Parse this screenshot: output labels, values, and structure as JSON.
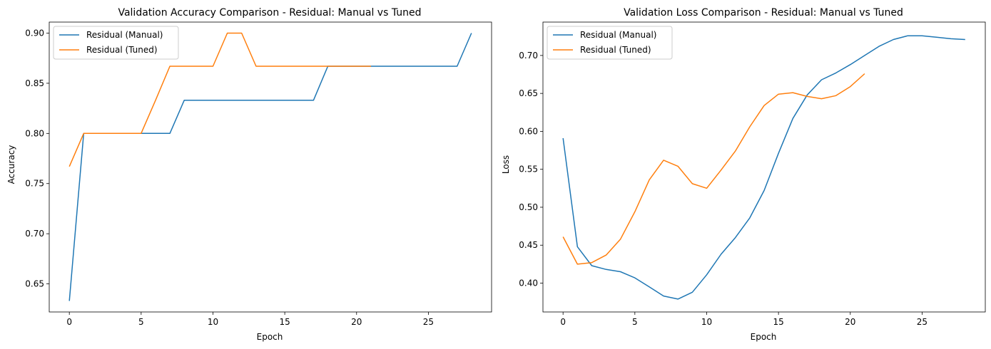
{
  "chart_data": [
    {
      "type": "line",
      "title": "Validation Accuracy Comparison - Residual: Manual vs Tuned",
      "xlabel": "Epoch",
      "ylabel": "Accuracy",
      "xlim": [
        -1.4,
        29.4
      ],
      "ylim": [
        0.622,
        0.911
      ],
      "xticks": [
        0,
        5,
        10,
        15,
        20,
        25
      ],
      "xtick_labels": [
        "0",
        "5",
        "10",
        "15",
        "20",
        "25"
      ],
      "yticks": [
        0.65,
        0.7,
        0.75,
        0.8,
        0.85,
        0.9
      ],
      "ytick_labels": [
        "0.65",
        "0.70",
        "0.75",
        "0.80",
        "0.85",
        "0.90"
      ],
      "grid": false,
      "legend_position": "top-left",
      "series": [
        {
          "name": "Residual (Manual)",
          "color": "#1f77b4",
          "x": [
            0,
            1,
            2,
            3,
            4,
            5,
            6,
            7,
            8,
            9,
            10,
            11,
            12,
            13,
            14,
            15,
            16,
            17,
            18,
            19,
            20,
            21,
            22,
            23,
            24,
            25,
            26,
            27,
            28
          ],
          "values": [
            0.633,
            0.8,
            0.8,
            0.8,
            0.8,
            0.8,
            0.8,
            0.8,
            0.833,
            0.833,
            0.833,
            0.833,
            0.833,
            0.833,
            0.833,
            0.833,
            0.833,
            0.833,
            0.867,
            0.867,
            0.867,
            0.867,
            0.867,
            0.867,
            0.867,
            0.867,
            0.867,
            0.867,
            0.9
          ]
        },
        {
          "name": "Residual (Tuned)",
          "color": "#ff7f0e",
          "x": [
            0,
            1,
            2,
            3,
            4,
            5,
            6,
            7,
            8,
            9,
            10,
            11,
            12,
            13,
            14,
            15,
            16,
            17,
            18,
            19,
            20,
            21
          ],
          "values": [
            0.767,
            0.8,
            0.8,
            0.8,
            0.8,
            0.8,
            0.833,
            0.867,
            0.867,
            0.867,
            0.867,
            0.9,
            0.9,
            0.867,
            0.867,
            0.867,
            0.867,
            0.867,
            0.867,
            0.867,
            0.867,
            0.867
          ]
        }
      ]
    },
    {
      "type": "line",
      "title": "Validation Loss Comparison - Residual: Manual vs Tuned",
      "xlabel": "Epoch",
      "ylabel": "Loss",
      "xlim": [
        -1.4,
        29.4
      ],
      "ylim": [
        0.362,
        0.744
      ],
      "xticks": [
        0,
        5,
        10,
        15,
        20,
        25
      ],
      "xtick_labels": [
        "0",
        "5",
        "10",
        "15",
        "20",
        "25"
      ],
      "yticks": [
        0.4,
        0.45,
        0.5,
        0.55,
        0.6,
        0.65,
        0.7
      ],
      "ytick_labels": [
        "0.40",
        "0.45",
        "0.50",
        "0.55",
        "0.60",
        "0.65",
        "0.70"
      ],
      "grid": false,
      "legend_position": "top-left",
      "series": [
        {
          "name": "Residual (Manual)",
          "color": "#1f77b4",
          "x": [
            0,
            1,
            2,
            3,
            4,
            5,
            6,
            7,
            8,
            9,
            10,
            11,
            12,
            13,
            14,
            15,
            16,
            17,
            18,
            19,
            20,
            21,
            22,
            23,
            24,
            25,
            26,
            27,
            28
          ],
          "values": [
            0.591,
            0.448,
            0.423,
            0.418,
            0.415,
            0.407,
            0.395,
            0.383,
            0.379,
            0.388,
            0.411,
            0.438,
            0.46,
            0.486,
            0.522,
            0.571,
            0.617,
            0.648,
            0.668,
            0.677,
            0.688,
            0.7,
            0.712,
            0.721,
            0.726,
            0.726,
            0.724,
            0.722,
            0.721
          ]
        },
        {
          "name": "Residual (Tuned)",
          "color": "#ff7f0e",
          "x": [
            0,
            1,
            2,
            3,
            4,
            5,
            6,
            7,
            8,
            9,
            10,
            11,
            12,
            13,
            14,
            15,
            16,
            17,
            18,
            19,
            20,
            21
          ],
          "values": [
            0.461,
            0.425,
            0.427,
            0.437,
            0.458,
            0.494,
            0.536,
            0.562,
            0.554,
            0.531,
            0.525,
            0.549,
            0.574,
            0.606,
            0.634,
            0.649,
            0.651,
            0.646,
            0.643,
            0.647,
            0.659,
            0.676
          ]
        }
      ]
    }
  ]
}
